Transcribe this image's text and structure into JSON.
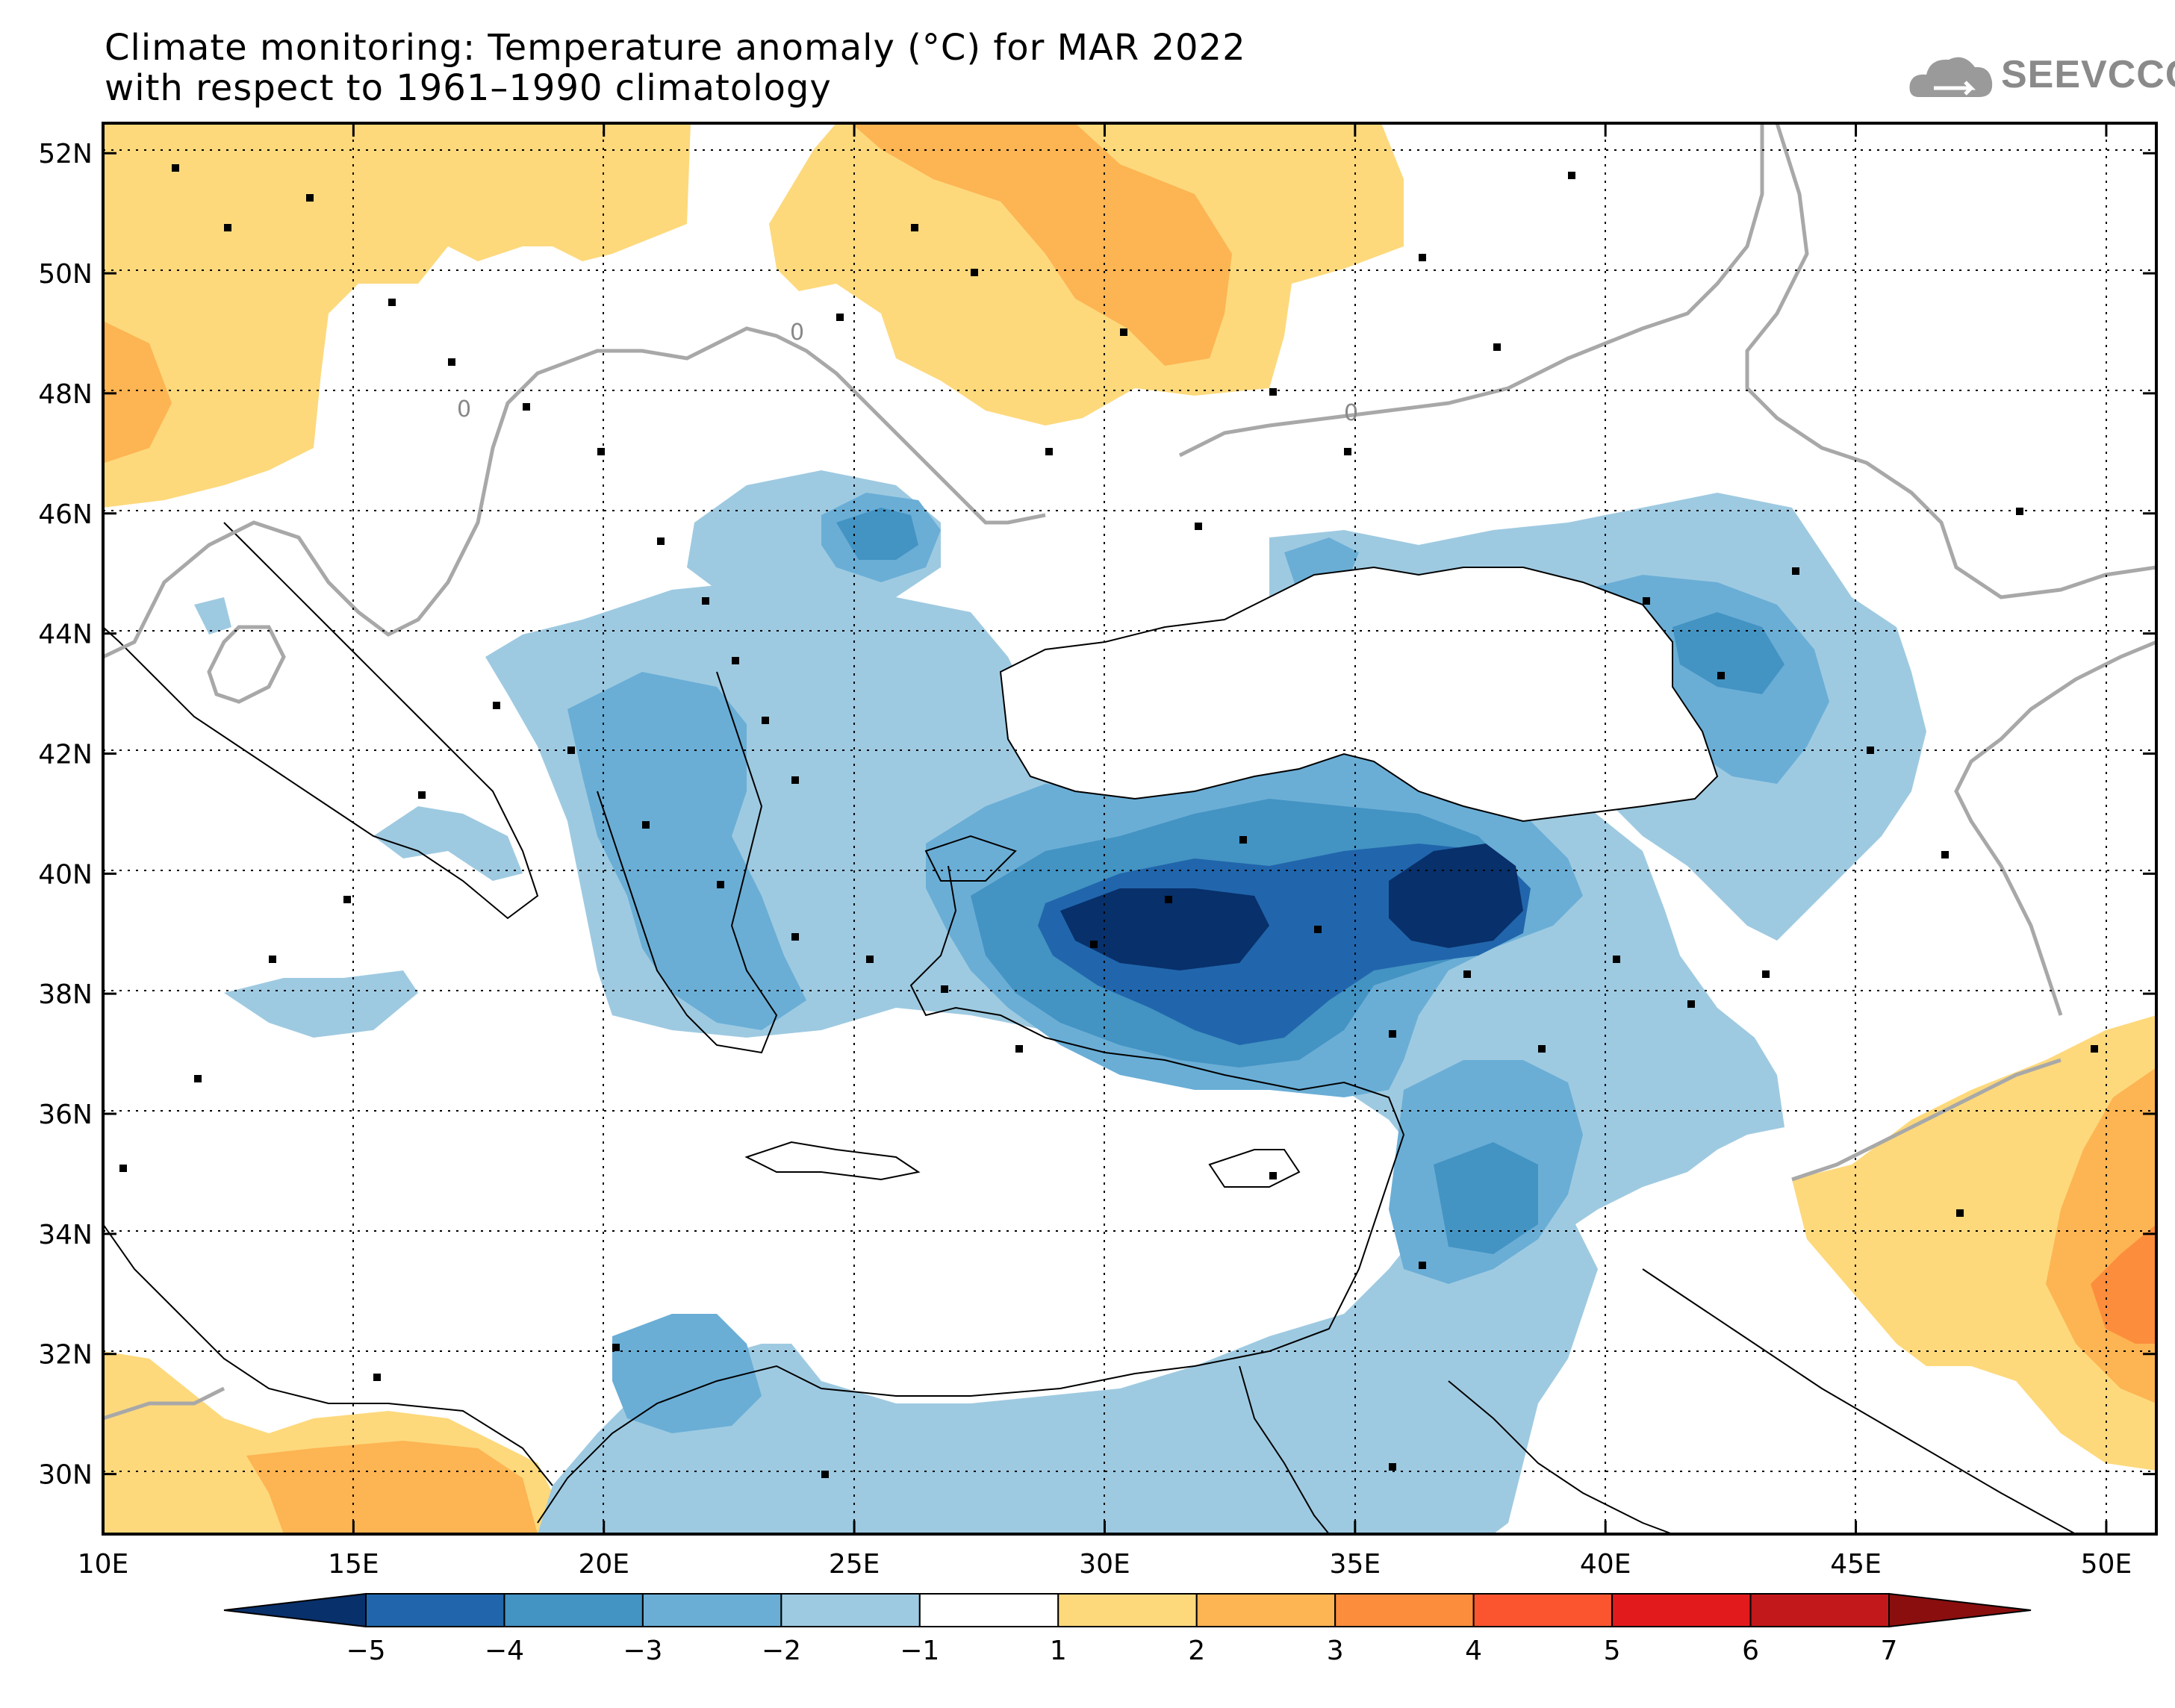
{
  "title": {
    "line1": "Climate monitoring: Temperature anomaly (°C) for MAR 2022",
    "line2": "with respect to 1961–1990 climatology"
  },
  "logo": {
    "text": "SEEVCCC",
    "icon": "cloud-icon"
  },
  "map": {
    "lon_range": [
      10,
      51
    ],
    "lat_range": [
      29,
      52.5
    ],
    "x_tick_labels": [
      "10E",
      "15E",
      "20E",
      "25E",
      "30E",
      "35E",
      "40E",
      "45E",
      "50E"
    ],
    "y_tick_labels": [
      "52N",
      "50N",
      "48N",
      "46N",
      "44N",
      "42N",
      "40N",
      "38N",
      "36N",
      "34N",
      "32N",
      "30N"
    ],
    "contour_labels": [
      "0",
      "0",
      "0"
    ]
  },
  "colorbar": {
    "tick_labels": [
      "-5",
      "-4",
      "-3",
      "-2",
      "-1",
      "1",
      "2",
      "3",
      "4",
      "5",
      "6",
      "7"
    ],
    "colors": [
      "#08306b",
      "#2166ac",
      "#4393c3",
      "#6aaed6",
      "#9ecae1",
      "#ffffff",
      "#fdd97c",
      "#fdb452",
      "#fc8d3c",
      "#fb5530",
      "#e31a1c",
      "#c2181b",
      "#8b0e0e"
    ]
  }
}
